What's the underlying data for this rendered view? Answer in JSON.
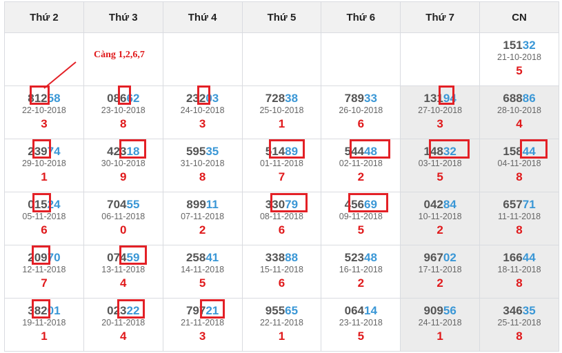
{
  "headers": [
    "Thứ 2",
    "Thứ 3",
    "Thứ 4",
    "Thứ 5",
    "Thứ 6",
    "Thứ 7",
    "CN"
  ],
  "note": "Càng 1,2,6,7",
  "rows": [
    [
      null,
      null,
      null,
      null,
      null,
      null,
      {
        "head": "151",
        "tail": "32",
        "date": "21-10-2018",
        "res": "5"
      }
    ],
    [
      {
        "head": "812",
        "tail": "58",
        "date": "22-10-2018",
        "res": "3"
      },
      {
        "head": "086",
        "tail": "62",
        "date": "23-10-2018",
        "res": "8"
      },
      {
        "head": "232",
        "tail": "03",
        "date": "24-10-2018",
        "res": "3"
      },
      {
        "head": "728",
        "tail": "38",
        "date": "25-10-2018",
        "res": "1"
      },
      {
        "head": "789",
        "tail": "33",
        "date": "26-10-2018",
        "res": "6"
      },
      {
        "head": "131",
        "tail": "94",
        "date": "27-10-2018",
        "res": "3"
      },
      {
        "head": "688",
        "tail": "86",
        "date": "28-10-2018",
        "res": "4"
      }
    ],
    [
      {
        "head": "239",
        "tail": "74",
        "date": "29-10-2018",
        "res": "1"
      },
      {
        "head": "423",
        "tail": "18",
        "date": "30-10-2018",
        "res": "9"
      },
      {
        "head": "595",
        "tail": "35",
        "date": "31-10-2018",
        "res": "8"
      },
      {
        "head": "514",
        "tail": "89",
        "date": "01-11-2018",
        "res": "7"
      },
      {
        "head": "544",
        "tail": "48",
        "date": "02-11-2018",
        "res": "2"
      },
      {
        "head": "148",
        "tail": "32",
        "date": "03-11-2018",
        "res": "5"
      },
      {
        "head": "158",
        "tail": "44",
        "date": "04-11-2018",
        "res": "8"
      }
    ],
    [
      {
        "head": "015",
        "tail": "24",
        "date": "05-11-2018",
        "res": "6"
      },
      {
        "head": "704",
        "tail": "55",
        "date": "06-11-2018",
        "res": "0"
      },
      {
        "head": "899",
        "tail": "11",
        "date": "07-11-2018",
        "res": "2"
      },
      {
        "head": "330",
        "tail": "79",
        "date": "08-11-2018",
        "res": "6"
      },
      {
        "head": "456",
        "tail": "69",
        "date": "09-11-2018",
        "res": "5"
      },
      {
        "head": "042",
        "tail": "84",
        "date": "10-11-2018",
        "res": "2"
      },
      {
        "head": "657",
        "tail": "71",
        "date": "11-11-2018",
        "res": "8"
      }
    ],
    [
      {
        "head": "209",
        "tail": "70",
        "date": "12-11-2018",
        "res": "7"
      },
      {
        "head": "074",
        "tail": "59",
        "date": "13-11-2018",
        "res": "4"
      },
      {
        "head": "258",
        "tail": "41",
        "date": "14-11-2018",
        "res": "5"
      },
      {
        "head": "338",
        "tail": "88",
        "date": "15-11-2018",
        "res": "6"
      },
      {
        "head": "523",
        "tail": "48",
        "date": "16-11-2018",
        "res": "2"
      },
      {
        "head": "967",
        "tail": "02",
        "date": "17-11-2018",
        "res": "2"
      },
      {
        "head": "166",
        "tail": "44",
        "date": "18-11-2018",
        "res": "8"
      }
    ],
    [
      {
        "head": "382",
        "tail": "01",
        "date": "19-11-2018",
        "res": "1"
      },
      {
        "head": "023",
        "tail": "22",
        "date": "20-11-2018",
        "res": "4"
      },
      {
        "head": "797",
        "tail": "21",
        "date": "21-11-2018",
        "res": "3"
      },
      {
        "head": "955",
        "tail": "65",
        "date": "22-11-2018",
        "res": "1"
      },
      {
        "head": "064",
        "tail": "14",
        "date": "23-11-2018",
        "res": "5"
      },
      {
        "head": "909",
        "tail": "56",
        "date": "24-11-2018",
        "res": "1"
      },
      {
        "head": "346",
        "tail": "35",
        "date": "25-11-2018",
        "res": "8"
      }
    ]
  ],
  "colors": {
    "accent": "#e32026",
    "tail_blue": "#3a97d6",
    "result_red": "#e0191b"
  }
}
